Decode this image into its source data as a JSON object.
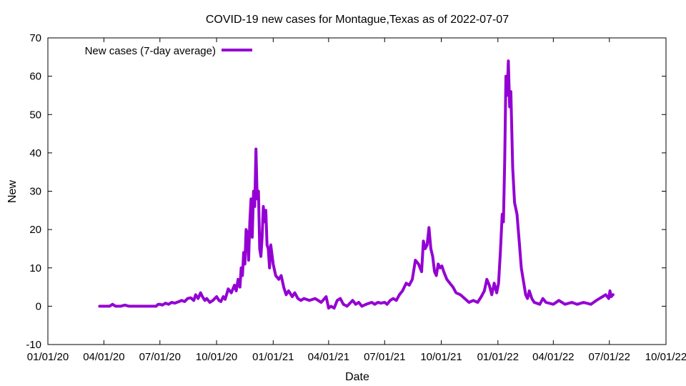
{
  "chart_data": {
    "type": "line",
    "title": "COVID-19 new cases for Montague,Texas as of 2022-07-07",
    "xlabel": "Date",
    "ylabel": "New",
    "x_ticks": [
      "01/01/20",
      "04/01/20",
      "07/01/20",
      "10/01/20",
      "01/01/21",
      "04/01/21",
      "07/01/21",
      "10/01/21",
      "01/01/22",
      "04/01/22",
      "07/01/22",
      "10/01/22"
    ],
    "y_ticks": [
      "-10",
      "0",
      "10",
      "20",
      "30",
      "40",
      "50",
      "60",
      "70"
    ],
    "xlim": [
      "2020-01-01",
      "2022-10-01"
    ],
    "ylim": [
      -10,
      70
    ],
    "grid": false,
    "legend": "top-left",
    "color": "#9400d3",
    "series": [
      {
        "name": "New cases (7-day average)",
        "points": [
          [
            "2020-03-25",
            0.0
          ],
          [
            "2020-04-01",
            0.0
          ],
          [
            "2020-04-10",
            0.0
          ],
          [
            "2020-04-15",
            0.5
          ],
          [
            "2020-04-20",
            0.0
          ],
          [
            "2020-04-28",
            0.0
          ],
          [
            "2020-05-05",
            0.3
          ],
          [
            "2020-05-12",
            0.0
          ],
          [
            "2020-05-20",
            0.0
          ],
          [
            "2020-06-01",
            0.0
          ],
          [
            "2020-06-15",
            0.0
          ],
          [
            "2020-06-25",
            0.0
          ],
          [
            "2020-06-28",
            0.5
          ],
          [
            "2020-07-01",
            0.5
          ],
          [
            "2020-07-05",
            0.3
          ],
          [
            "2020-07-10",
            0.8
          ],
          [
            "2020-07-15",
            0.5
          ],
          [
            "2020-07-20",
            1.0
          ],
          [
            "2020-07-25",
            0.8
          ],
          [
            "2020-08-01",
            1.2
          ],
          [
            "2020-08-05",
            1.5
          ],
          [
            "2020-08-10",
            1.2
          ],
          [
            "2020-08-15",
            2.0
          ],
          [
            "2020-08-20",
            2.2
          ],
          [
            "2020-08-25",
            1.5
          ],
          [
            "2020-08-28",
            3.0
          ],
          [
            "2020-09-01",
            2.0
          ],
          [
            "2020-09-05",
            3.5
          ],
          [
            "2020-09-08",
            2.5
          ],
          [
            "2020-09-12",
            1.5
          ],
          [
            "2020-09-15",
            2.0
          ],
          [
            "2020-09-20",
            1.0
          ],
          [
            "2020-09-25",
            1.5
          ],
          [
            "2020-10-01",
            2.5
          ],
          [
            "2020-10-05",
            1.5
          ],
          [
            "2020-10-08",
            1.2
          ],
          [
            "2020-10-12",
            2.5
          ],
          [
            "2020-10-15",
            1.8
          ],
          [
            "2020-10-20",
            4.5
          ],
          [
            "2020-10-25",
            3.5
          ],
          [
            "2020-10-30",
            5.5
          ],
          [
            "2020-11-02",
            4.0
          ],
          [
            "2020-11-05",
            7.0
          ],
          [
            "2020-11-08",
            5.0
          ],
          [
            "2020-11-10",
            10.0
          ],
          [
            "2020-11-12",
            8.0
          ],
          [
            "2020-11-14",
            14.0
          ],
          [
            "2020-11-16",
            11.0
          ],
          [
            "2020-11-18",
            20.0
          ],
          [
            "2020-11-20",
            19.0
          ],
          [
            "2020-11-22",
            12.0
          ],
          [
            "2020-11-24",
            22.0
          ],
          [
            "2020-11-26",
            28.0
          ],
          [
            "2020-11-28",
            18.0
          ],
          [
            "2020-11-30",
            30.0
          ],
          [
            "2020-12-02",
            26.0
          ],
          [
            "2020-12-04",
            41.0
          ],
          [
            "2020-12-06",
            28.0
          ],
          [
            "2020-12-08",
            30.0
          ],
          [
            "2020-12-10",
            15.0
          ],
          [
            "2020-12-12",
            13.0
          ],
          [
            "2020-12-14",
            18.0
          ],
          [
            "2020-12-16",
            26.0
          ],
          [
            "2020-12-18",
            22.0
          ],
          [
            "2020-12-20",
            25.0
          ],
          [
            "2020-12-22",
            16.0
          ],
          [
            "2020-12-24",
            15.0
          ],
          [
            "2020-12-26",
            10.0
          ],
          [
            "2020-12-28",
            16.0
          ],
          [
            "2021-01-01",
            11.0
          ],
          [
            "2021-01-05",
            8.0
          ],
          [
            "2021-01-10",
            7.0
          ],
          [
            "2021-01-14",
            8.0
          ],
          [
            "2021-01-18",
            5.0
          ],
          [
            "2021-01-22",
            3.0
          ],
          [
            "2021-01-26",
            4.0
          ],
          [
            "2021-02-01",
            2.5
          ],
          [
            "2021-02-05",
            3.5
          ],
          [
            "2021-02-10",
            2.0
          ],
          [
            "2021-02-15",
            1.5
          ],
          [
            "2021-02-20",
            2.0
          ],
          [
            "2021-03-01",
            1.5
          ],
          [
            "2021-03-10",
            2.0
          ],
          [
            "2021-03-20",
            1.0
          ],
          [
            "2021-03-28",
            2.5
          ],
          [
            "2021-04-01",
            -0.5
          ],
          [
            "2021-04-05",
            0.0
          ],
          [
            "2021-04-10",
            -0.5
          ],
          [
            "2021-04-15",
            1.5
          ],
          [
            "2021-04-20",
            2.0
          ],
          [
            "2021-04-25",
            0.5
          ],
          [
            "2021-05-01",
            0.0
          ],
          [
            "2021-05-10",
            1.5
          ],
          [
            "2021-05-15",
            0.5
          ],
          [
            "2021-05-20",
            1.0
          ],
          [
            "2021-05-25",
            0.0
          ],
          [
            "2021-06-01",
            0.5
          ],
          [
            "2021-06-10",
            1.0
          ],
          [
            "2021-06-15",
            0.5
          ],
          [
            "2021-06-20",
            1.0
          ],
          [
            "2021-06-25",
            0.8
          ],
          [
            "2021-07-01",
            1.0
          ],
          [
            "2021-07-05",
            0.5
          ],
          [
            "2021-07-10",
            1.5
          ],
          [
            "2021-07-15",
            2.0
          ],
          [
            "2021-07-20",
            1.5
          ],
          [
            "2021-07-25",
            3.0
          ],
          [
            "2021-07-30",
            4.0
          ],
          [
            "2021-08-05",
            6.0
          ],
          [
            "2021-08-10",
            5.5
          ],
          [
            "2021-08-15",
            7.0
          ],
          [
            "2021-08-20",
            12.0
          ],
          [
            "2021-08-25",
            11.0
          ],
          [
            "2021-08-30",
            9.0
          ],
          [
            "2021-09-02",
            17.0
          ],
          [
            "2021-09-05",
            15.0
          ],
          [
            "2021-09-08",
            16.0
          ],
          [
            "2021-09-11",
            20.5
          ],
          [
            "2021-09-14",
            15.0
          ],
          [
            "2021-09-17",
            13.0
          ],
          [
            "2021-09-20",
            9.0
          ],
          [
            "2021-09-23",
            8.0
          ],
          [
            "2021-09-26",
            11.0
          ],
          [
            "2021-09-29",
            10.0
          ],
          [
            "2021-10-02",
            10.5
          ],
          [
            "2021-10-05",
            9.0
          ],
          [
            "2021-10-10",
            7.0
          ],
          [
            "2021-10-15",
            6.0
          ],
          [
            "2021-10-20",
            5.0
          ],
          [
            "2021-10-25",
            3.5
          ],
          [
            "2021-11-01",
            3.0
          ],
          [
            "2021-11-08",
            2.0
          ],
          [
            "2021-11-15",
            1.0
          ],
          [
            "2021-11-22",
            1.5
          ],
          [
            "2021-11-29",
            1.0
          ],
          [
            "2021-12-05",
            2.5
          ],
          [
            "2021-12-10",
            4.0
          ],
          [
            "2021-12-14",
            7.0
          ],
          [
            "2021-12-18",
            5.5
          ],
          [
            "2021-12-22",
            3.0
          ],
          [
            "2021-12-26",
            6.0
          ],
          [
            "2021-12-30",
            3.5
          ],
          [
            "2022-01-02",
            6.0
          ],
          [
            "2022-01-05",
            14.0
          ],
          [
            "2022-01-08",
            24.0
          ],
          [
            "2022-01-10",
            22.0
          ],
          [
            "2022-01-12",
            38.0
          ],
          [
            "2022-01-14",
            60.0
          ],
          [
            "2022-01-16",
            55.0
          ],
          [
            "2022-01-18",
            64.0
          ],
          [
            "2022-01-20",
            52.0
          ],
          [
            "2022-01-22",
            56.0
          ],
          [
            "2022-01-25",
            36.0
          ],
          [
            "2022-01-28",
            27.0
          ],
          [
            "2022-02-01",
            24.0
          ],
          [
            "2022-02-05",
            16.0
          ],
          [
            "2022-02-08",
            10.0
          ],
          [
            "2022-02-12",
            6.0
          ],
          [
            "2022-02-15",
            3.0
          ],
          [
            "2022-02-18",
            2.0
          ],
          [
            "2022-02-21",
            4.0
          ],
          [
            "2022-02-25",
            2.0
          ],
          [
            "2022-03-01",
            1.0
          ],
          [
            "2022-03-10",
            0.5
          ],
          [
            "2022-03-15",
            2.0
          ],
          [
            "2022-03-20",
            1.0
          ],
          [
            "2022-04-01",
            0.5
          ],
          [
            "2022-04-10",
            1.5
          ],
          [
            "2022-04-20",
            0.5
          ],
          [
            "2022-05-01",
            1.0
          ],
          [
            "2022-05-10",
            0.5
          ],
          [
            "2022-05-20",
            1.0
          ],
          [
            "2022-06-01",
            0.5
          ],
          [
            "2022-06-10",
            1.5
          ],
          [
            "2022-06-15",
            2.0
          ],
          [
            "2022-06-20",
            2.5
          ],
          [
            "2022-06-25",
            3.0
          ],
          [
            "2022-06-30",
            2.0
          ],
          [
            "2022-07-02",
            4.0
          ],
          [
            "2022-07-04",
            2.5
          ],
          [
            "2022-07-07",
            3.0
          ]
        ]
      }
    ]
  }
}
